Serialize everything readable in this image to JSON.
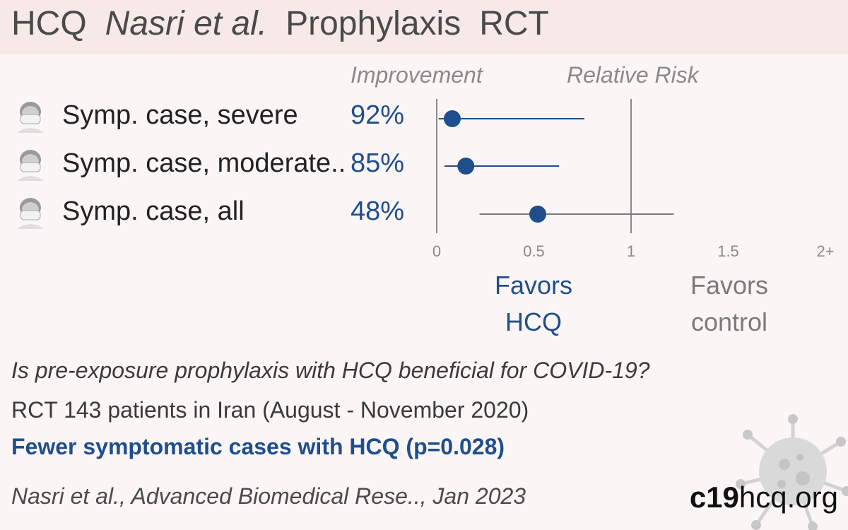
{
  "header": {
    "title_parts": [
      "HCQ",
      "Nasri et al.",
      "Prophylaxis",
      "RCT"
    ]
  },
  "columns": {
    "improvement_label": "Improvement",
    "relative_risk_label": "Relative Risk"
  },
  "rows": [
    {
      "label": "Symp. case, severe",
      "improvement": "92%",
      "icon": "sick-person-mask-icon"
    },
    {
      "label": "Symp. case, moderate..",
      "improvement": "85%",
      "icon": "sick-person-mask-icon"
    },
    {
      "label": "Symp. case, all",
      "improvement": "48%",
      "icon": "sick-person-mask-icon"
    }
  ],
  "chart_data": {
    "type": "scatter",
    "subtype": "forest-plot",
    "x_axis": {
      "title": "",
      "range": [
        0,
        2
      ],
      "ticks": [
        0,
        0.5,
        1,
        1.5,
        2
      ],
      "tick_labels": [
        "0",
        "0.5",
        "1",
        "1.5",
        "2+"
      ],
      "reference_lines": [
        0,
        1
      ]
    },
    "series": [
      {
        "category": "Symp. case, severe",
        "rr": 0.08,
        "ci_low": 0.01,
        "ci_high": 0.76,
        "color": "#1f4e8c",
        "significant": true
      },
      {
        "category": "Symp. case, moderate..",
        "rr": 0.15,
        "ci_low": 0.04,
        "ci_high": 0.63,
        "color": "#1f4e8c",
        "significant": true
      },
      {
        "category": "Symp. case, all",
        "rr": 0.52,
        "ci_low": 0.22,
        "ci_high": 1.22,
        "color": "#1f4e8c",
        "ci_color": "#7a7a7a",
        "significant": false
      }
    ],
    "favors_left": "Favors HCQ",
    "favors_right": "Favors control"
  },
  "favors": {
    "left_line1": "Favors",
    "left_line2": "HCQ",
    "right_line1": "Favors",
    "right_line2": "control"
  },
  "summary": {
    "question": "Is pre-exposure prophylaxis with HCQ beneficial for COVID-19?",
    "design": "RCT 143 patients in Iran (August - November 2020)",
    "conclusion": "Fewer symptomatic cases with HCQ (p=0.028)"
  },
  "citation": "Nasri et al., Advanced Biomedical Rese.., Jan 2023",
  "site": {
    "bold": "c19",
    "rest": "hcq.org"
  },
  "colors": {
    "accent": "#1f4e8c",
    "neutral": "#7a7a7a",
    "header_bg": "#f6e9e7",
    "page_bg": "#fbf6f5"
  }
}
